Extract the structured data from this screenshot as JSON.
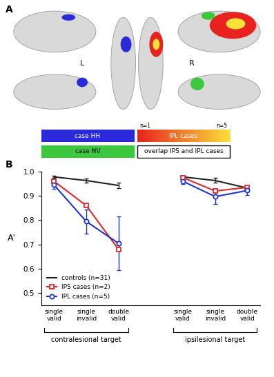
{
  "panel_a": {
    "label": "A",
    "hemispheres": [
      "L",
      "R"
    ],
    "legend": [
      {
        "name": "case HH",
        "color": "#2a2ad8"
      },
      {
        "name": "IPL cases",
        "colors": [
          "#e8231f",
          "#fbe03a"
        ],
        "range_labels": [
          "n=1",
          "n=5"
        ]
      },
      {
        "name": "case NV",
        "color": "#3cc83c"
      },
      {
        "name": "overlap IPS and IPL cases",
        "color": "#ffffff"
      }
    ]
  },
  "chart_data": {
    "type": "line",
    "panel_label": "B",
    "y_label": "A'",
    "categories": [
      "single\nvalid",
      "single\ninvalid",
      "double\nvalid",
      null,
      "single\nvalid",
      "single\ninvalid",
      "double\nvalid"
    ],
    "groups": [
      "contralesional target",
      "ipsilesional target"
    ],
    "ylim": [
      0.45,
      1
    ],
    "yticks": [
      0.5,
      0.6,
      0.7,
      0.8,
      0.9,
      {
        "value": 1,
        "label": "1.0"
      }
    ],
    "legend": "lower left",
    "series": [
      {
        "name": "controls (n=31)",
        "color": "#222222",
        "marker": "none",
        "line_style": "solid",
        "values": [
          0.978,
          0.963,
          0.943,
          null,
          0.978,
          0.963,
          0.932
        ],
        "errors": [
          0.005,
          0.008,
          0.01,
          null,
          0.005,
          0.01,
          0.005
        ]
      },
      {
        "name": "IPS cases (n=2)",
        "color": "#e0282a",
        "marker": "square",
        "line_style": "solid",
        "values": [
          0.96,
          0.86,
          0.68,
          null,
          0.975,
          0.92,
          0.935
        ]
      },
      {
        "name": "IPL cases (n=5)",
        "color": "#2233cc",
        "marker": "circle",
        "line_style": "solid",
        "values": [
          0.945,
          0.795,
          0.705,
          null,
          0.96,
          0.897,
          0.922
        ],
        "errors": [
          0.015,
          0.05,
          0.11,
          null,
          0.01,
          0.03,
          0.02
        ]
      }
    ]
  }
}
